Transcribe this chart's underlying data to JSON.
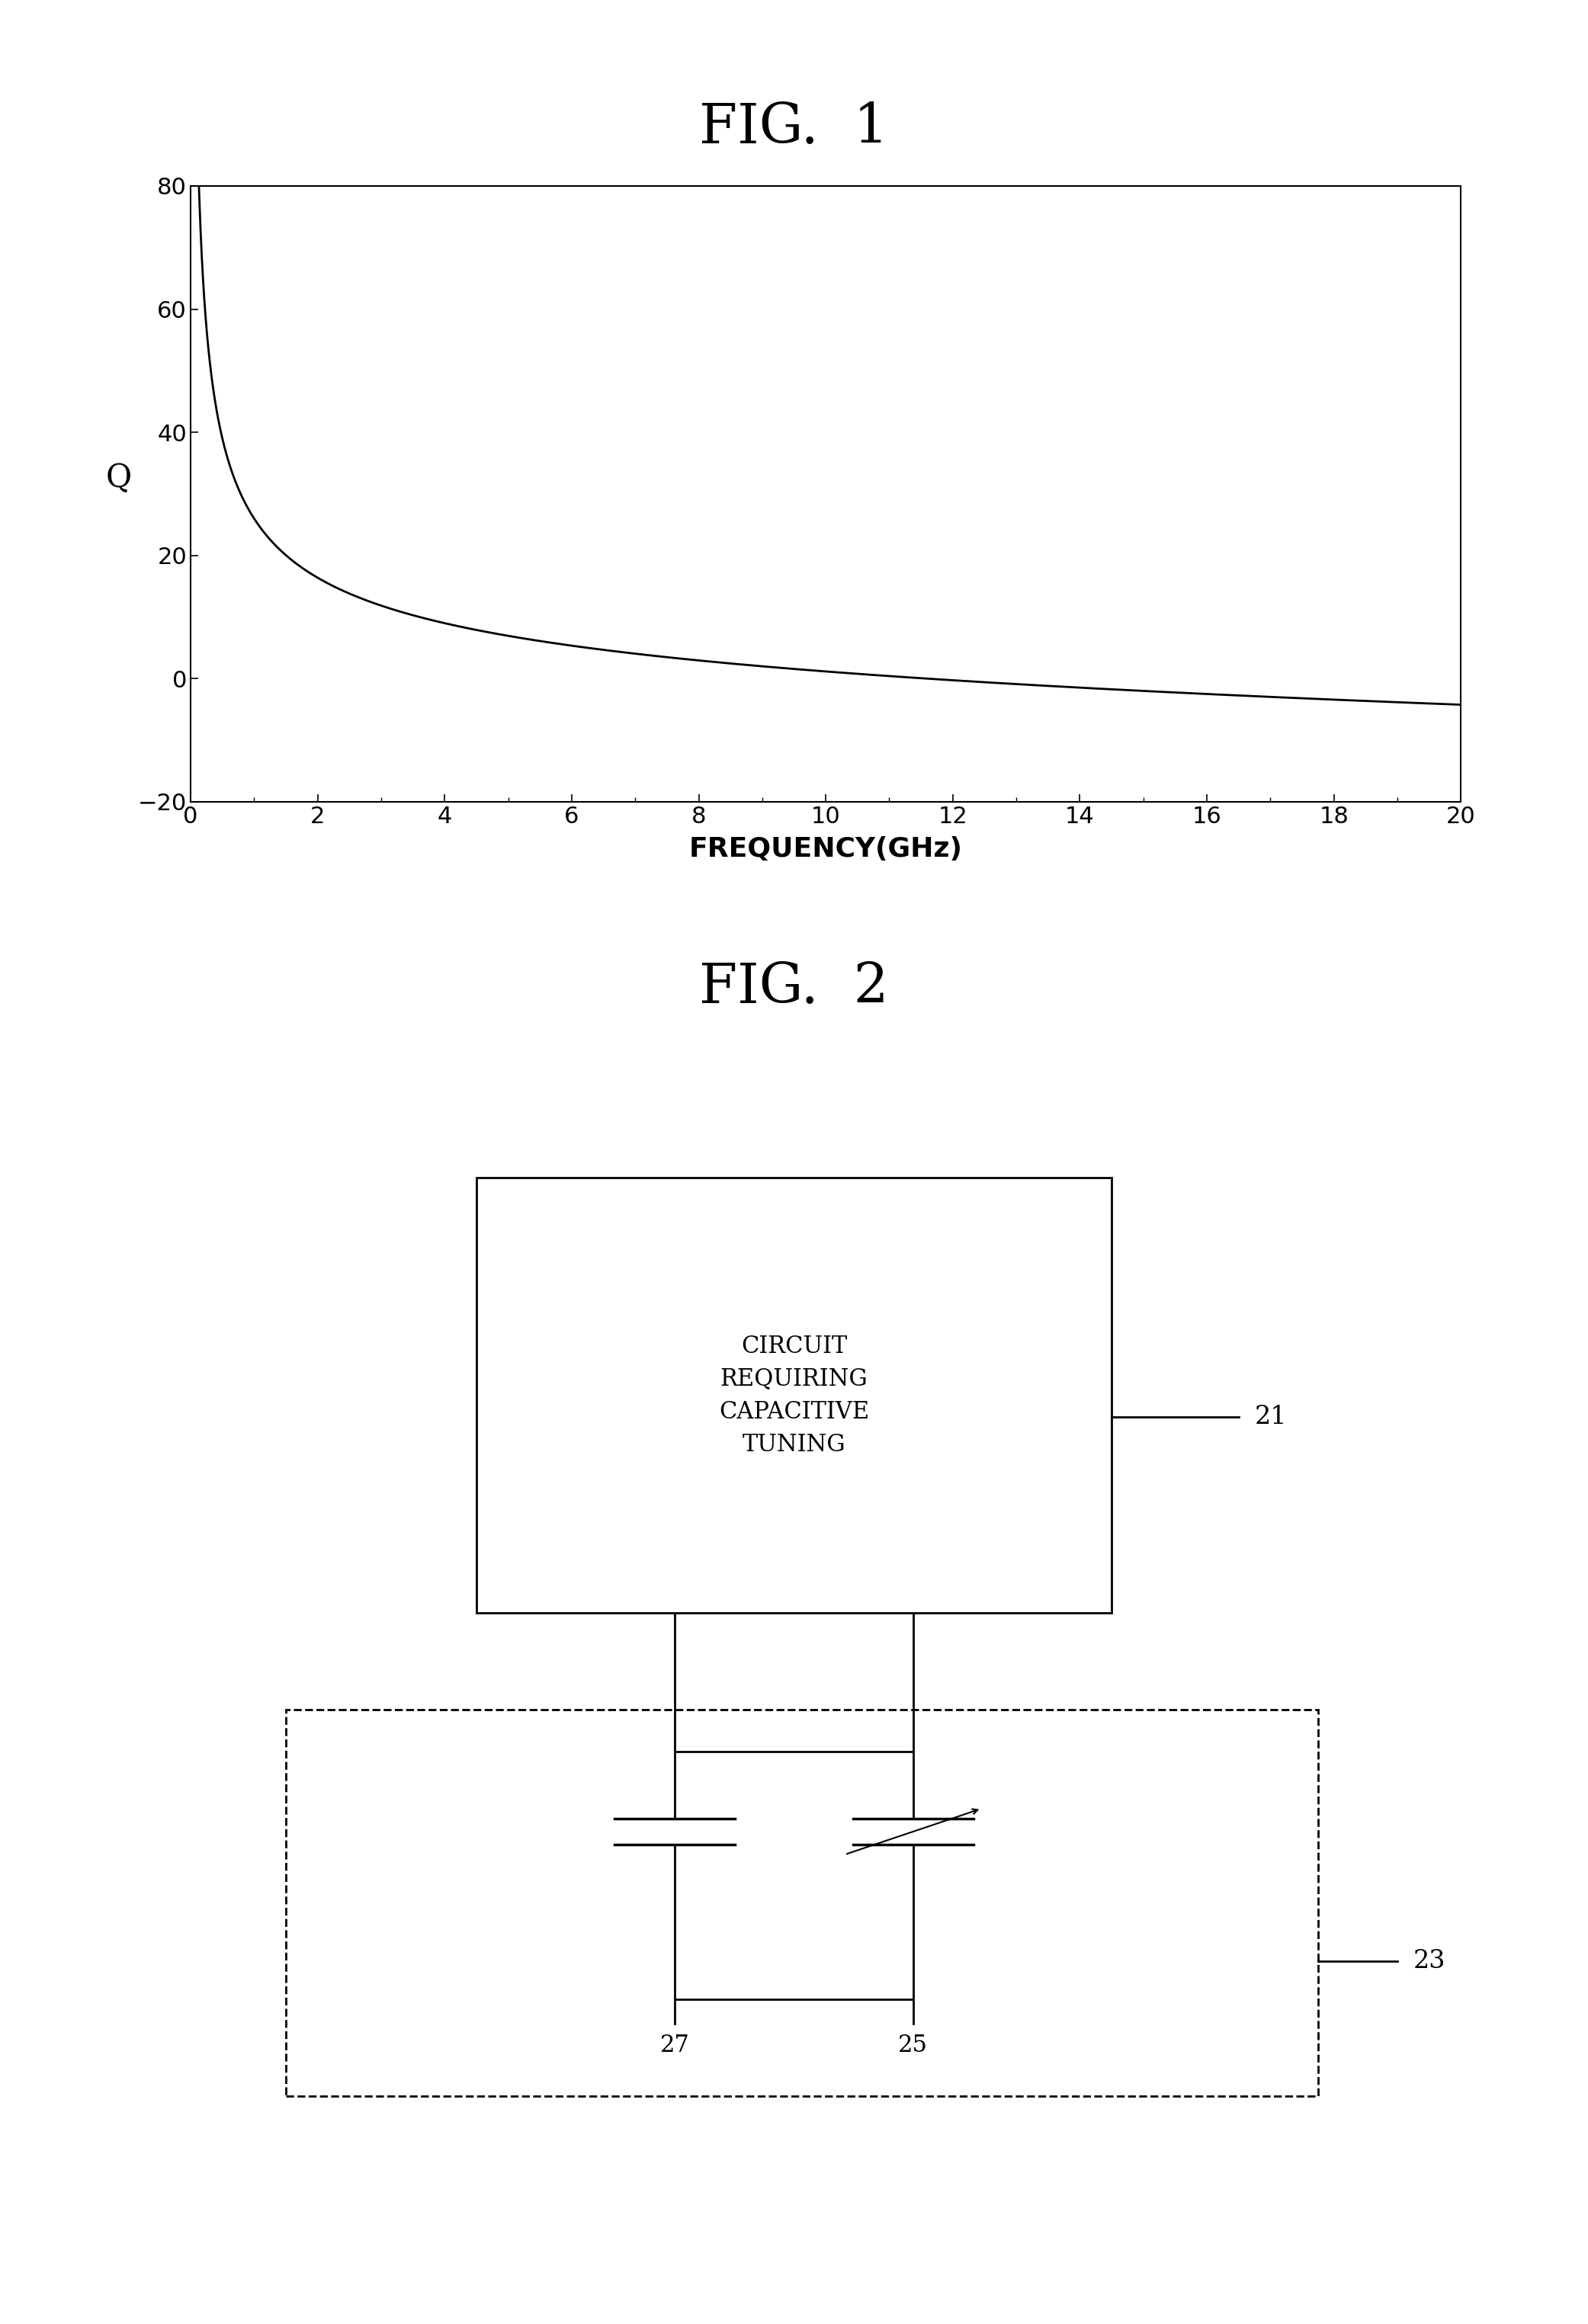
{
  "fig1_title": "FIG.  1",
  "fig2_title": "FIG.  2",
  "ylabel": "Q",
  "xlabel": "FREQUENCY(GHz)",
  "ylim": [
    -20,
    80
  ],
  "xlim": [
    0,
    20
  ],
  "yticks": [
    -20,
    0,
    20,
    40,
    60,
    80
  ],
  "xticks": [
    0,
    2,
    4,
    6,
    8,
    10,
    12,
    14,
    16,
    18,
    20
  ],
  "box21_label": "CIRCUIT\nREQUIRING\nCAPACITIVE\nTUNING",
  "label_21": "21",
  "label_23": "23",
  "label_27": "27",
  "label_25": "25",
  "bg_color": "#ffffff",
  "line_color": "#000000"
}
